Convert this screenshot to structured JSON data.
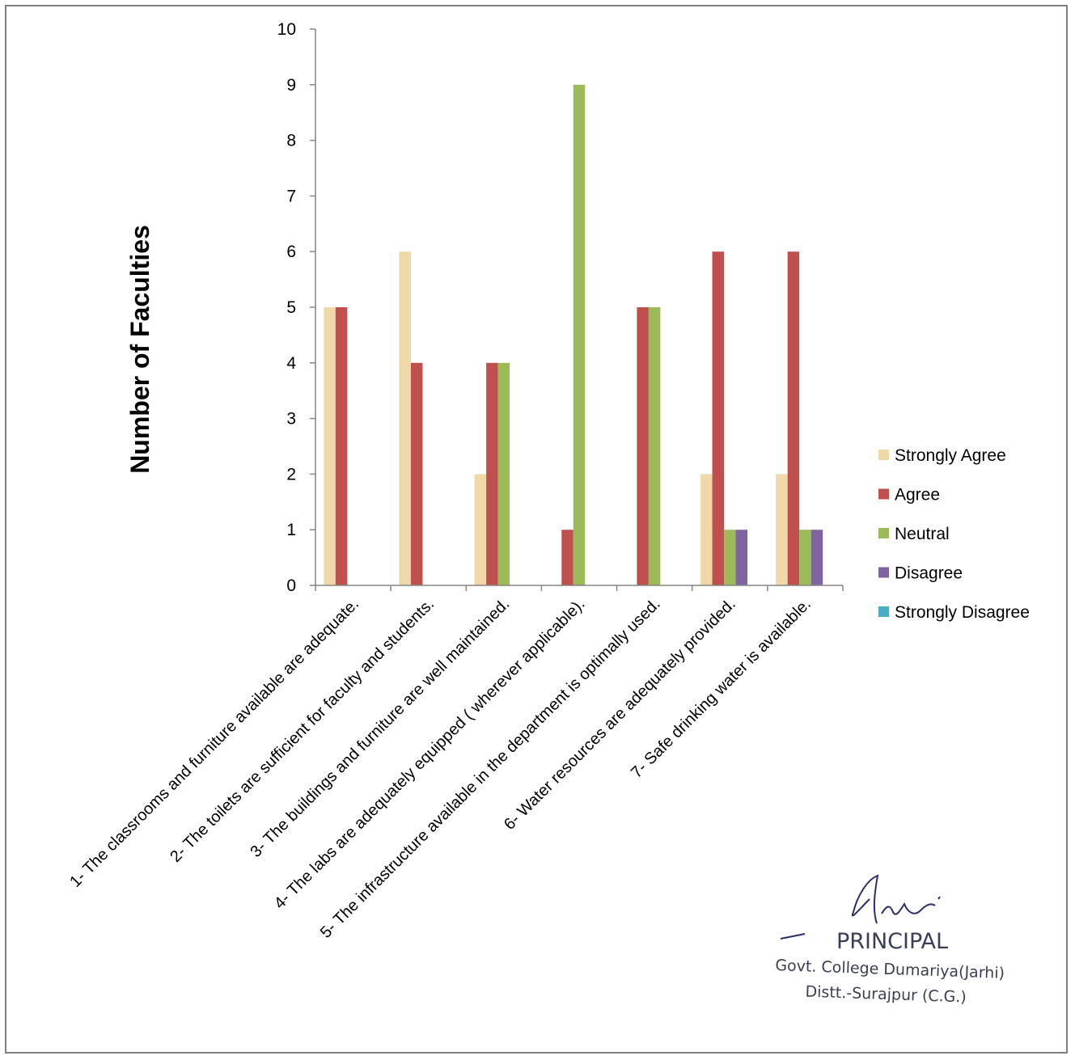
{
  "chart_data": {
    "type": "bar",
    "ylabel": "Number of Faculties",
    "xlabel": "",
    "ylim": [
      0,
      10
    ],
    "yticks": [
      0,
      1,
      2,
      3,
      4,
      5,
      6,
      7,
      8,
      9,
      10
    ],
    "grid": false,
    "legend_position": "right",
    "categories": [
      "1- The classrooms and furniture available are adequate.",
      "2- The toilets are sufficient for faculty and students.",
      "3- The buildings and furniture are well maintained.",
      "4- The labs are adequately equipped ( wherever applicable).",
      "5- The infrastructure available in the department is optimally used.",
      "6- Water resources are adequately provided.",
      "7- Safe drinking water is available."
    ],
    "series": [
      {
        "name": "Strongly Agree",
        "color": "#f0d9a8",
        "values": [
          5,
          6,
          2,
          0,
          0,
          2,
          2
        ]
      },
      {
        "name": "Agree",
        "color": "#c0504d",
        "values": [
          5,
          4,
          4,
          1,
          5,
          6,
          6
        ]
      },
      {
        "name": "Neutral",
        "color": "#9bbb59",
        "values": [
          0,
          0,
          4,
          9,
          5,
          1,
          1
        ]
      },
      {
        "name": "Disagree",
        "color": "#8064a2",
        "values": [
          0,
          0,
          0,
          0,
          0,
          1,
          1
        ]
      },
      {
        "name": "Strongly Disagree",
        "color": "#4bacc6",
        "values": [
          0,
          0,
          0,
          0,
          0,
          0,
          0
        ]
      }
    ]
  },
  "stamp": {
    "signature": "Tiwari",
    "line1": "PRINCIPAL",
    "line2": "Govt. College Dumariya(Jarhi)",
    "line3": "Distt.-Surajpur (C.G.)"
  }
}
